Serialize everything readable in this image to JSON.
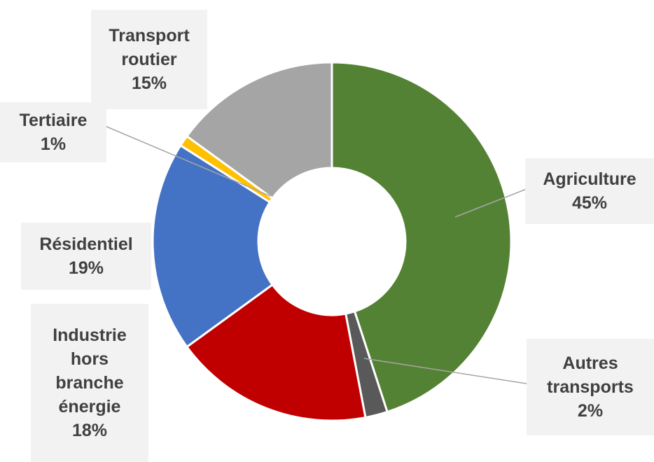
{
  "chart_data": {
    "type": "donut",
    "categories": [
      "Agriculture",
      "Autres transports",
      "Industrie hors branche énergie",
      "Résidentiel",
      "Tertiaire",
      "Transport routier"
    ],
    "values": [
      45,
      2,
      18,
      19,
      1,
      15
    ],
    "value_labels": [
      "45%",
      "2%",
      "18%",
      "19%",
      "1%",
      "15%"
    ],
    "colors": [
      "#548235",
      "#595959",
      "#c00000",
      "#4472c4",
      "#ffc000",
      "#a5a5a5"
    ]
  }
}
